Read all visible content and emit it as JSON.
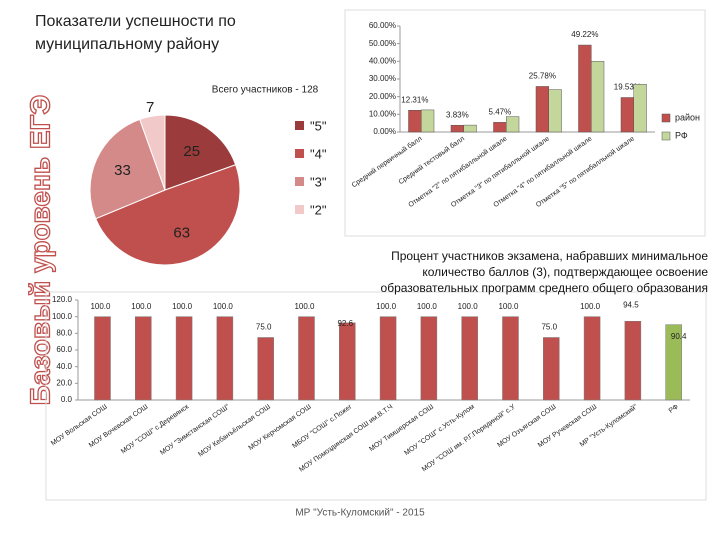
{
  "title": [
    "Показатели успешности по",
    "муниципальному району"
  ],
  "side_label": "Базовый уровень ЕГЭ",
  "footer": "МР \"Усть-Куломский\" - 2015",
  "chart_data": [
    {
      "type": "pie",
      "title": "Всего участников - 128",
      "categories": [
        "\"5\"",
        "\"4\"",
        "\"3\"",
        "\"2\""
      ],
      "values": [
        25,
        63,
        33,
        7
      ],
      "colors": [
        "#9b3b3b",
        "#c0504d",
        "#d58a8a",
        "#f2c9c9"
      ]
    },
    {
      "type": "bar",
      "categories": [
        "Средний первичный балл",
        "Средний тестовый балл",
        "Отметка \"2\" по пятибалльной шкале",
        "Отметка \"3\" по пятибалльной шкале",
        "Отметка \"4\" по пятибалльной шкале",
        "Отметка \"5\" по пятибалльной шкале"
      ],
      "series": [
        {
          "name": "район",
          "color": "#c0504d",
          "values": [
            12.31,
            3.83,
            5.47,
            25.78,
            49.22,
            19.53
          ],
          "value_labels": [
            "12.31%",
            "3.83%",
            "5.47%",
            "25.78%",
            "49.22%",
            "19.53%"
          ]
        },
        {
          "name": "РФ",
          "color": "#c3d69b",
          "values": [
            12.5,
            3.9,
            8.7,
            24,
            40,
            27
          ]
        }
      ],
      "ylim": [
        0,
        60
      ],
      "yticks": [
        {
          "value": 0,
          "label": "0.00%"
        },
        {
          "value": 10,
          "label": "10.00%"
        },
        {
          "value": 20,
          "label": "20.00%"
        },
        {
          "value": 30,
          "label": "30.00%"
        },
        {
          "value": 40,
          "label": "40.00%"
        },
        {
          "value": 50,
          "label": "50.00%"
        },
        {
          "value": 60,
          "label": "60.00%"
        }
      ],
      "legend": "right"
    },
    {
      "type": "bar",
      "title": "Процент участников экзамена, набравших минимальное количество баллов (3), подтверждающее освоение образовательных программ среднего общего образования",
      "categories": [
        "МОУ Вольская СОШ",
        "МОУ Вочевская СОШ",
        "МОУ \"СОШ\" с.Деревянск",
        "МОУ \"Зимстанская СОШ\"",
        "МОУ Кебанъёльская СОШ",
        "МОУ Керчомская СОШ",
        "МБОУ \"СОШ\" с.Пожег",
        "МОУ Помоздинская СОШ им.В.Т.Ч",
        "МОУ Тимшерская СОШ",
        "МОУ \"СОШ\" с.Усть-Кулом",
        "МОУ \"СОШ им. Р.Г.Порядиной\" с.У",
        "МОУ Озъягская СОШ",
        "МОУ Ручевская СОШ",
        "МР \"Усть-Куломский\"",
        "РФ"
      ],
      "values": [
        100,
        100,
        100,
        100,
        75,
        100,
        92.6,
        100,
        100,
        100,
        100,
        75,
        100,
        94.5,
        90.4
      ],
      "value_labels": [
        "100.0",
        "100.0",
        "100.0",
        "100.0",
        "75.0",
        "100.0",
        "92.6",
        "100.0",
        "100.0",
        "100.0",
        "100.0",
        "75.0",
        "100.0",
        "94.5",
        "90.4"
      ],
      "colors": [
        "#c0504d",
        "#c0504d",
        "#c0504d",
        "#c0504d",
        "#c0504d",
        "#c0504d",
        "#c0504d",
        "#c0504d",
        "#c0504d",
        "#c0504d",
        "#c0504d",
        "#c0504d",
        "#c0504d",
        "#c0504d",
        "#9bbb59"
      ],
      "ylim": [
        0,
        120
      ],
      "yticks": [
        {
          "value": 0,
          "label": "0.0"
        },
        {
          "value": 20,
          "label": "20.0"
        },
        {
          "value": 40,
          "label": "40.0"
        },
        {
          "value": 60,
          "label": "60.0"
        },
        {
          "value": 80,
          "label": "80.0"
        },
        {
          "value": 100,
          "label": "100.0"
        },
        {
          "value": 120,
          "label": "120.0"
        }
      ]
    }
  ]
}
